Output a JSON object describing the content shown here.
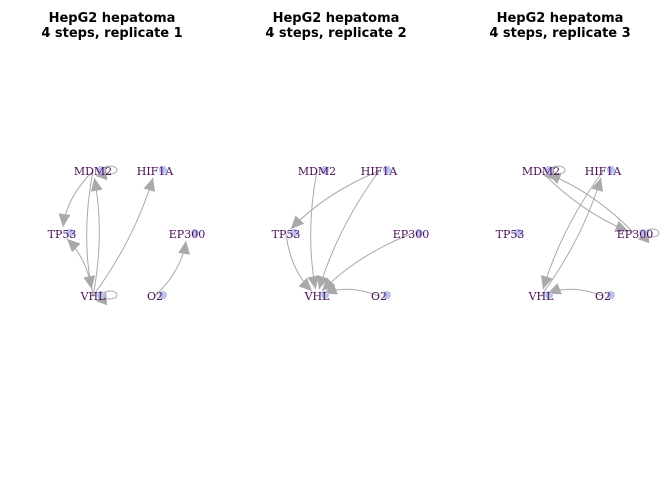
{
  "colors": {
    "edge": "#a9a9a9",
    "label": "#4b0c55",
    "node": "#b8c4f0"
  },
  "panels": [
    {
      "title_line1": "HepG2 hepatoma",
      "title_line2": "4 steps, replicate 1",
      "nodes": [
        "MDM2",
        "HIF1A",
        "TP53",
        "EP300",
        "VHL",
        "O2"
      ],
      "edges": [
        {
          "from": "MDM2",
          "to": "MDM2"
        },
        {
          "from": "MDM2",
          "to": "TP53"
        },
        {
          "from": "MDM2",
          "to": "VHL"
        },
        {
          "from": "VHL",
          "to": "MDM2"
        },
        {
          "from": "VHL",
          "to": "HIF1A"
        },
        {
          "from": "VHL",
          "to": "TP53"
        },
        {
          "from": "VHL",
          "to": "VHL"
        },
        {
          "from": "O2",
          "to": "EP300"
        }
      ]
    },
    {
      "title_line1": "HepG2 hepatoma",
      "title_line2": "4 steps, replicate 2",
      "nodes": [
        "MDM2",
        "HIF1A",
        "TP53",
        "EP300",
        "VHL",
        "O2"
      ],
      "edges": [
        {
          "from": "MDM2",
          "to": "VHL"
        },
        {
          "from": "HIF1A",
          "to": "TP53"
        },
        {
          "from": "HIF1A",
          "to": "VHL"
        },
        {
          "from": "TP53",
          "to": "VHL"
        },
        {
          "from": "EP300",
          "to": "VHL"
        },
        {
          "from": "O2",
          "to": "VHL"
        }
      ]
    },
    {
      "title_line1": "HepG2 hepatoma",
      "title_line2": "4 steps, replicate 3",
      "nodes": [
        "MDM2",
        "HIF1A",
        "TP53",
        "EP300",
        "VHL",
        "O2"
      ],
      "edges": [
        {
          "from": "MDM2",
          "to": "MDM2"
        },
        {
          "from": "MDM2",
          "to": "EP300"
        },
        {
          "from": "EP300",
          "to": "MDM2"
        },
        {
          "from": "HIF1A",
          "to": "VHL"
        },
        {
          "from": "VHL",
          "to": "HIF1A"
        },
        {
          "from": "EP300",
          "to": "EP300"
        },
        {
          "from": "O2",
          "to": "VHL"
        }
      ]
    }
  ]
}
